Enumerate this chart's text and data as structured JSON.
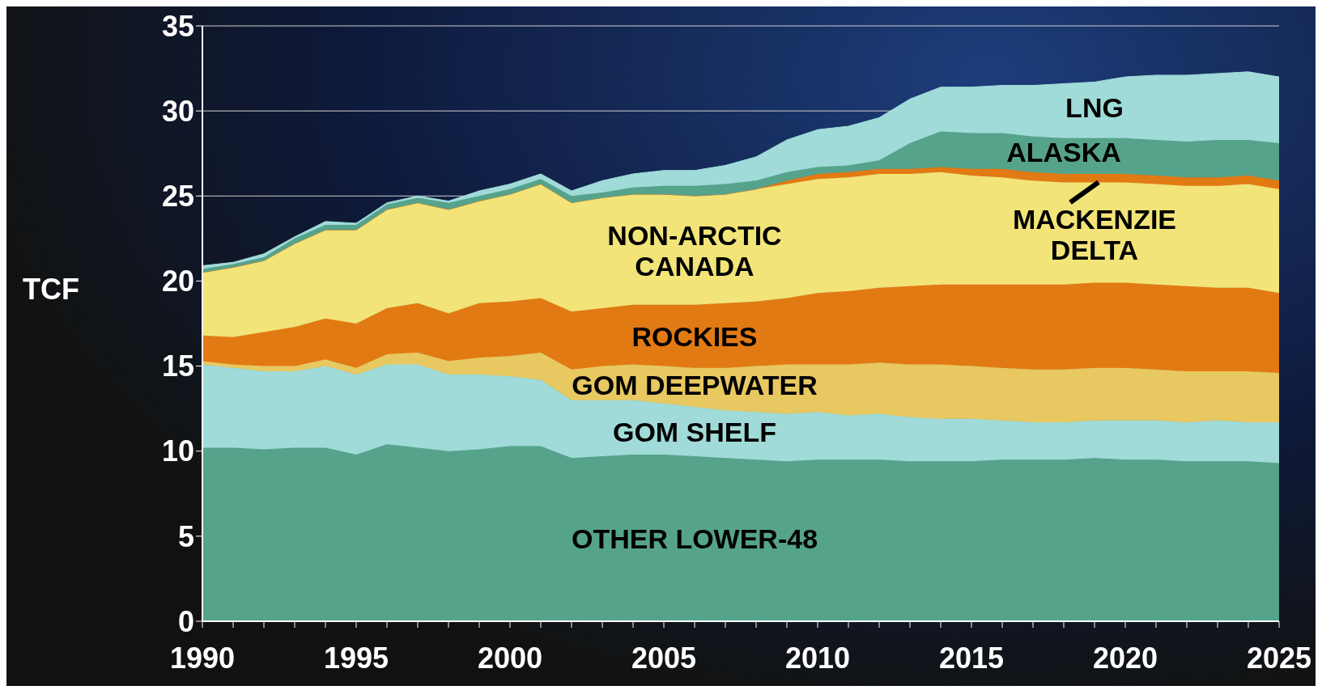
{
  "chart_data": {
    "type": "area",
    "stacked": true,
    "ylabel": "TCF",
    "x": [
      1990,
      1991,
      1992,
      1993,
      1994,
      1995,
      1996,
      1997,
      1998,
      1999,
      2000,
      2001,
      2002,
      2003,
      2004,
      2005,
      2006,
      2007,
      2008,
      2009,
      2010,
      2011,
      2012,
      2013,
      2014,
      2015,
      2016,
      2017,
      2018,
      2019,
      2020,
      2021,
      2022,
      2023,
      2024,
      2025
    ],
    "series": [
      {
        "name": "OTHER LOWER-48",
        "color": "#56a38c",
        "values": [
          10.2,
          10.2,
          10.1,
          10.2,
          10.2,
          9.8,
          10.4,
          10.2,
          10.0,
          10.1,
          10.3,
          10.3,
          9.6,
          9.7,
          9.8,
          9.8,
          9.7,
          9.6,
          9.5,
          9.4,
          9.5,
          9.5,
          9.5,
          9.4,
          9.4,
          9.4,
          9.5,
          9.5,
          9.5,
          9.6,
          9.5,
          9.5,
          9.4,
          9.4,
          9.4,
          9.3
        ]
      },
      {
        "name": "GOM SHELF",
        "color": "#a0dbd9",
        "values": [
          4.9,
          4.7,
          4.6,
          4.5,
          4.8,
          4.7,
          4.7,
          4.9,
          4.5,
          4.4,
          4.1,
          3.9,
          3.4,
          3.3,
          3.2,
          3.0,
          2.9,
          2.8,
          2.8,
          2.8,
          2.8,
          2.6,
          2.7,
          2.6,
          2.5,
          2.5,
          2.3,
          2.2,
          2.2,
          2.2,
          2.3,
          2.3,
          2.3,
          2.4,
          2.3,
          2.4
        ]
      },
      {
        "name": "GOM DEEPWATER",
        "color": "#e8c860",
        "values": [
          0.2,
          0.2,
          0.3,
          0.3,
          0.4,
          0.4,
          0.6,
          0.7,
          0.8,
          1.0,
          1.2,
          1.6,
          1.8,
          2.0,
          2.1,
          2.2,
          2.3,
          2.5,
          2.7,
          2.9,
          2.8,
          3.0,
          3.0,
          3.1,
          3.2,
          3.1,
          3.1,
          3.1,
          3.1,
          3.1,
          3.1,
          3.0,
          3.0,
          2.9,
          3.0,
          2.9
        ]
      },
      {
        "name": "ROCKIES",
        "color": "#e27a13",
        "values": [
          1.5,
          1.6,
          2.0,
          2.3,
          2.4,
          2.6,
          2.7,
          2.9,
          2.8,
          3.2,
          3.2,
          3.2,
          3.4,
          3.4,
          3.5,
          3.6,
          3.7,
          3.8,
          3.8,
          3.9,
          4.2,
          4.3,
          4.4,
          4.6,
          4.7,
          4.8,
          4.9,
          5.0,
          5.0,
          5.0,
          5.0,
          5.0,
          5.0,
          4.9,
          4.9,
          4.7
        ]
      },
      {
        "name": "NON-ARCTIC\nCANADA",
        "color": "#f2e479",
        "values": [
          3.7,
          4.1,
          4.2,
          4.9,
          5.2,
          5.5,
          5.8,
          5.9,
          6.1,
          6.0,
          6.3,
          6.7,
          6.4,
          6.5,
          6.5,
          6.5,
          6.4,
          6.4,
          6.6,
          6.7,
          6.7,
          6.7,
          6.7,
          6.6,
          6.6,
          6.4,
          6.3,
          6.1,
          6.0,
          5.9,
          5.9,
          5.9,
          5.9,
          6.0,
          6.1,
          6.1
        ]
      },
      {
        "name": "MACKENZIE\nDELTA",
        "color": "#e27a13",
        "values": [
          0,
          0,
          0,
          0,
          0,
          0,
          0,
          0,
          0,
          0,
          0,
          0,
          0,
          0,
          0,
          0,
          0,
          0,
          0,
          0.2,
          0.3,
          0.3,
          0.3,
          0.3,
          0.3,
          0.4,
          0.5,
          0.5,
          0.5,
          0.5,
          0.5,
          0.5,
          0.5,
          0.5,
          0.5,
          0.5
        ]
      },
      {
        "name": "ALASKA",
        "color": "#56a38c",
        "values": [
          0.2,
          0.2,
          0.2,
          0.3,
          0.3,
          0.3,
          0.3,
          0.3,
          0.4,
          0.3,
          0.3,
          0.3,
          0.4,
          0.3,
          0.4,
          0.5,
          0.6,
          0.6,
          0.5,
          0.5,
          0.4,
          0.4,
          0.5,
          1.5,
          2.1,
          2.1,
          2.1,
          2.1,
          2.1,
          2.1,
          2.1,
          2.1,
          2.1,
          2.2,
          2.1,
          2.2
        ]
      },
      {
        "name": "LNG",
        "color": "#a0dbd9",
        "values": [
          0.2,
          0.1,
          0.2,
          0.1,
          0.2,
          0.1,
          0.1,
          0.1,
          0.1,
          0.3,
          0.3,
          0.3,
          0.3,
          0.7,
          0.8,
          0.9,
          0.9,
          1.1,
          1.4,
          1.9,
          2.2,
          2.3,
          2.5,
          2.6,
          2.6,
          2.7,
          2.8,
          3.0,
          3.2,
          3.3,
          3.6,
          3.8,
          3.9,
          3.9,
          4.0,
          3.9
        ]
      }
    ],
    "xlim": [
      1990,
      2025
    ],
    "xticks": [
      1990,
      {
        "value": 1991,
        "label": null
      },
      {
        "value": 1992,
        "label": null
      },
      {
        "value": 1993,
        "label": null
      },
      {
        "value": 1994,
        "label": null
      },
      1995,
      {
        "value": 1996,
        "label": null
      },
      {
        "value": 1997,
        "label": null
      },
      {
        "value": 1998,
        "label": null
      },
      {
        "value": 1999,
        "label": null
      },
      2000,
      {
        "value": 2001,
        "label": null
      },
      {
        "value": 2002,
        "label": null
      },
      {
        "value": 2003,
        "label": null
      },
      {
        "value": 2004,
        "label": null
      },
      2005,
      {
        "value": 2006,
        "label": null
      },
      {
        "value": 2007,
        "label": null
      },
      {
        "value": 2008,
        "label": null
      },
      {
        "value": 2009,
        "label": null
      },
      2010,
      {
        "value": 2011,
        "label": null
      },
      {
        "value": 2012,
        "label": null
      },
      {
        "value": 2013,
        "label": null
      },
      {
        "value": 2014,
        "label": null
      },
      2015,
      {
        "value": 2016,
        "label": null
      },
      {
        "value": 2017,
        "label": null
      },
      {
        "value": 2018,
        "label": null
      },
      {
        "value": 2019,
        "label": null
      },
      2020,
      {
        "value": 2021,
        "label": null
      },
      {
        "value": 2022,
        "label": null
      },
      {
        "value": 2023,
        "label": null
      },
      {
        "value": 2024,
        "label": null
      },
      2025
    ],
    "ylim": [
      0,
      35
    ],
    "yticks": [
      0,
      5,
      10,
      15,
      20,
      25,
      30,
      35
    ],
    "grid": "y"
  }
}
